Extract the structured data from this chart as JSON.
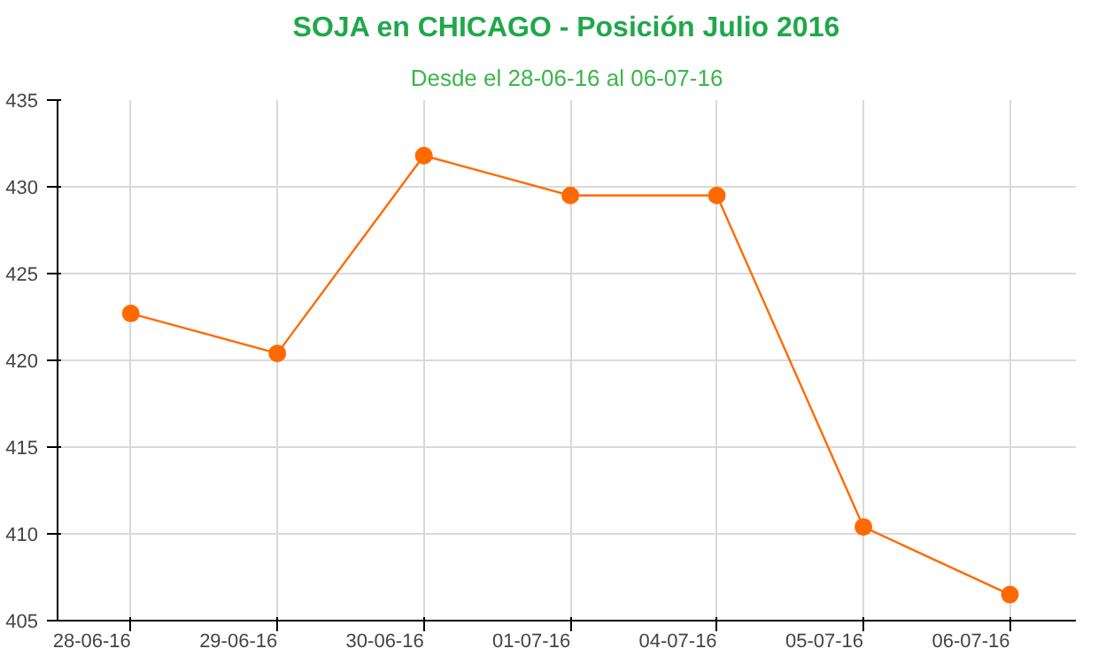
{
  "chart_data": {
    "type": "line",
    "title": "SOJA en CHICAGO - Posición Julio 2016",
    "subtitle": "Desde el 28-06-16 al 06-07-16",
    "categories": [
      "28-06-16",
      "29-06-16",
      "30-06-16",
      "01-07-16",
      "04-07-16",
      "05-07-16",
      "06-07-16"
    ],
    "series": [
      {
        "color": "#ff6a00",
        "values": [
          422.7,
          420.4,
          431.8,
          429.5,
          429.5,
          410.4,
          406.5
        ]
      }
    ],
    "ylim": [
      405,
      435
    ],
    "yticks": [
      405,
      410,
      415,
      420,
      425,
      430,
      435
    ],
    "grid": true,
    "marker": "circle",
    "line_style": "solid"
  }
}
